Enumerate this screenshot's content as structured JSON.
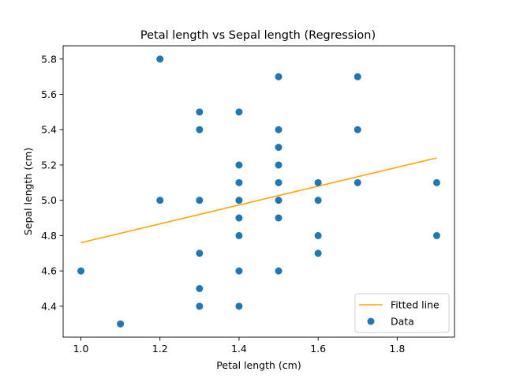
{
  "colors": {
    "data_points": "#1f77b4",
    "fitted_line": "#ffa500",
    "axes": "#000000",
    "background": "#ffffff"
  },
  "chart_data": {
    "type": "scatter",
    "title": "Petal length vs Sepal length (Regression)",
    "xlabel": "Petal length (cm)",
    "ylabel": "Sepal length (cm)",
    "xlim": [
      0.955,
      1.945
    ],
    "ylim": [
      4.225,
      5.875
    ],
    "xticks": [
      1.0,
      1.2,
      1.4,
      1.6,
      1.8
    ],
    "xtick_labels": [
      "1.0",
      "1.2",
      "1.4",
      "1.6",
      "1.8"
    ],
    "yticks": [
      4.4,
      4.6,
      4.8,
      5.0,
      5.2,
      5.4,
      5.6,
      5.8
    ],
    "ytick_labels": [
      "4.4",
      "4.6",
      "4.8",
      "5.0",
      "5.2",
      "5.4",
      "5.6",
      "5.8"
    ],
    "grid": false,
    "legend": {
      "placement": "lower-right",
      "entries": [
        {
          "label": "Fitted line",
          "kind": "line"
        },
        {
          "label": "Data",
          "kind": "marker"
        }
      ]
    },
    "series": [
      {
        "name": "Data",
        "kind": "scatter",
        "points": [
          [
            1.0,
            4.6
          ],
          [
            1.1,
            4.3
          ],
          [
            1.2,
            5.8
          ],
          [
            1.2,
            5.0
          ],
          [
            1.3,
            5.5
          ],
          [
            1.3,
            5.4
          ],
          [
            1.3,
            5.0
          ],
          [
            1.3,
            4.7
          ],
          [
            1.3,
            4.5
          ],
          [
            1.3,
            4.4
          ],
          [
            1.4,
            5.5
          ],
          [
            1.4,
            5.2
          ],
          [
            1.4,
            5.1
          ],
          [
            1.4,
            5.0
          ],
          [
            1.4,
            4.9
          ],
          [
            1.4,
            4.8
          ],
          [
            1.4,
            4.6
          ],
          [
            1.4,
            4.4
          ],
          [
            1.5,
            5.7
          ],
          [
            1.5,
            5.4
          ],
          [
            1.5,
            5.3
          ],
          [
            1.5,
            5.2
          ],
          [
            1.5,
            5.1
          ],
          [
            1.5,
            5.0
          ],
          [
            1.5,
            4.9
          ],
          [
            1.5,
            4.6
          ],
          [
            1.6,
            5.1
          ],
          [
            1.6,
            5.0
          ],
          [
            1.6,
            4.8
          ],
          [
            1.6,
            4.7
          ],
          [
            1.7,
            5.7
          ],
          [
            1.7,
            5.4
          ],
          [
            1.7,
            5.1
          ],
          [
            1.9,
            5.1
          ],
          [
            1.9,
            4.8
          ]
        ]
      },
      {
        "name": "Fitted line",
        "kind": "line",
        "x": [
          1.0,
          1.9
        ],
        "y": [
          4.76,
          5.24
        ]
      }
    ]
  }
}
